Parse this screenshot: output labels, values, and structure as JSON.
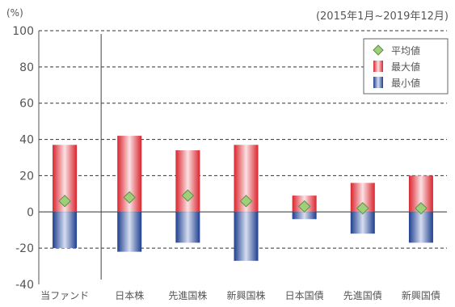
{
  "chart_data": {
    "type": "bar",
    "unit_label": "(%)",
    "period_label": "(2015年1月~2019年12月)",
    "categories": [
      "当ファンド",
      "日本株",
      "先進国株",
      "新興国株",
      "日本国債",
      "先進国債",
      "新興国債"
    ],
    "series": [
      {
        "name": "平均値",
        "kind": "marker",
        "values": [
          6,
          8,
          9,
          6,
          3,
          2,
          2
        ]
      },
      {
        "name": "最大値",
        "kind": "bar-positive",
        "values": [
          37,
          42,
          34,
          37,
          9,
          16,
          20
        ]
      },
      {
        "name": "最小値",
        "kind": "bar-negative",
        "values": [
          -20,
          -22,
          -17,
          -27,
          -4,
          -12,
          -17
        ]
      }
    ],
    "yticks": [
      100,
      80,
      60,
      40,
      20,
      0,
      -20,
      -40
    ],
    "ylim": [
      -40,
      100
    ],
    "grid": true,
    "legend_position": "top-right",
    "colors": {
      "max_bar_edge": "#d9252e",
      "max_bar_center": "#fbe1e3",
      "min_bar_edge": "#1e3f8e",
      "min_bar_center": "#d6ddf0",
      "avg_marker_fill": "#9ed07a",
      "avg_marker_stroke": "#5f8c4a",
      "grid": "#333333",
      "axis": "#555555",
      "text": "#555555"
    }
  }
}
